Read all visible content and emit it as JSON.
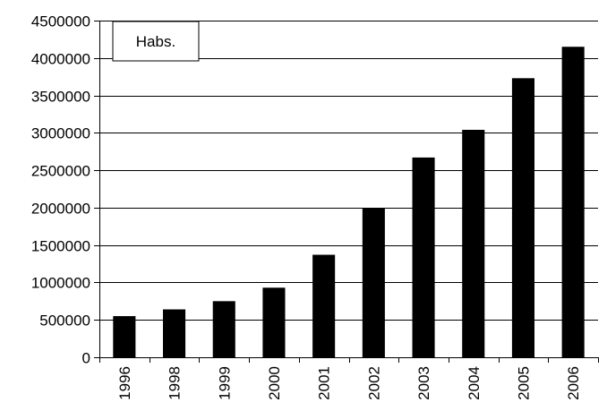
{
  "chart_data": {
    "type": "bar",
    "legend_label": "Habs.",
    "legend_placement": "top-left",
    "categories": [
      "1996",
      "1998",
      "1999",
      "2000",
      "2001",
      "2002",
      "2003",
      "2004",
      "2005",
      "2006"
    ],
    "values": [
      550000,
      640000,
      750000,
      930000,
      1370000,
      1990000,
      2670000,
      3040000,
      3730000,
      4150000
    ],
    "ylim": [
      0,
      4500000
    ],
    "yticks": [
      "0",
      "500000",
      "1000000",
      "1500000",
      "2000000",
      "2500000",
      "3000000",
      "3500000",
      "4000000",
      "4500000"
    ],
    "grid": true,
    "bar_color": "#000000"
  }
}
